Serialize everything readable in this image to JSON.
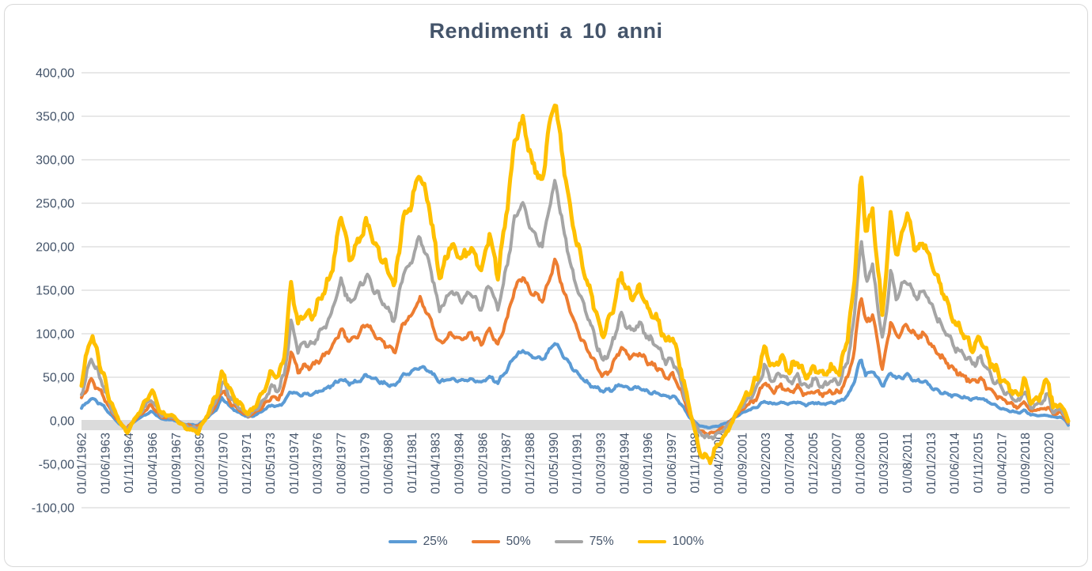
{
  "title": "Rendimenti a 10 anni",
  "chart_data": {
    "type": "line",
    "title": "Rendimenti a 10 anni",
    "grid": true,
    "legend_position": "bottom",
    "y_axis": {
      "min": -100,
      "max": 400,
      "step": 50,
      "tick_labels": [
        "400,00",
        "350,00",
        "300,00",
        "250,00",
        "200,00",
        "150,00",
        "100,00",
        "50,00",
        "0,00",
        "-50,00",
        "-100,00"
      ]
    },
    "x_axis": {
      "start_year": 1962.0,
      "end_year": 2021.25,
      "tick_interval_months": 17,
      "tick_labels": [
        "01/01/1962",
        "01/06/1963",
        "01/11/1964",
        "01/04/1966",
        "01/09/1967",
        "01/02/1969",
        "01/07/1970",
        "01/12/1971",
        "01/05/1973",
        "01/10/1974",
        "01/03/1976",
        "01/08/1977",
        "01/01/1979",
        "01/06/1980",
        "01/11/1981",
        "01/04/1983",
        "01/09/1984",
        "01/02/1986",
        "01/07/1987",
        "01/12/1988",
        "01/05/1990",
        "01/10/1991",
        "01/03/1993",
        "01/08/1994",
        "01/01/1996",
        "01/06/1997",
        "01/11/1998",
        "01/04/2000",
        "01/09/2001",
        "01/02/2003",
        "01/07/2004",
        "01/12/2005",
        "01/05/2007",
        "01/10/2008",
        "01/03/2010",
        "01/08/2011",
        "01/01/2013",
        "01/06/2014",
        "01/11/2015",
        "01/04/2017",
        "01/09/2018",
        "01/02/2020"
      ]
    },
    "keypoint_years": [
      1962.0,
      1962.6,
      1963.3,
      1963.7,
      1964.2,
      1964.7,
      1965.3,
      1966.2,
      1966.8,
      1967.5,
      1968.2,
      1969.0,
      1969.6,
      1970.1,
      1970.45,
      1970.9,
      1971.4,
      1972.0,
      1972.5,
      1973.0,
      1973.4,
      1973.8,
      1974.2,
      1974.6,
      1975.0,
      1975.4,
      1975.8,
      1976.2,
      1976.6,
      1977.0,
      1977.6,
      1978.1,
      1978.6,
      1979.1,
      1979.6,
      1980.1,
      1980.8,
      1981.3,
      1981.8,
      1982.3,
      1982.9,
      1983.5,
      1984.2,
      1984.8,
      1985.4,
      1986.0,
      1986.5,
      1987.0,
      1987.6,
      1988.0,
      1988.5,
      1989.0,
      1989.7,
      1990.0,
      1990.45,
      1990.9,
      1991.5,
      1992.0,
      1992.6,
      1993.3,
      1993.8,
      1994.4,
      1995.0,
      1995.5,
      1996.0,
      1996.6,
      1997.1,
      1997.5,
      1998.0,
      1998.5,
      1999.1,
      1999.7,
      2000.2,
      2000.7,
      2001.1,
      2001.6,
      2002.0,
      2002.5,
      2003.0,
      2003.5,
      2004.0,
      2004.5,
      2005.0,
      2005.5,
      2006.0,
      2006.5,
      2007.0,
      2007.5,
      2008.0,
      2008.4,
      2008.8,
      2009.1,
      2009.5,
      2010.1,
      2010.6,
      2010.95,
      2011.3,
      2011.6,
      2012.1,
      2012.6,
      2013.1,
      2013.7,
      2014.3,
      2014.9,
      2015.5,
      2016.0,
      2016.5,
      2017.0,
      2017.4,
      2017.8,
      2018.3,
      2018.6,
      2019.0,
      2019.5,
      2020.05,
      2020.35,
      2020.8,
      2021.1,
      2021.3
    ],
    "series": [
      {
        "name": "25%",
        "color": "#5B9BD5",
        "stroke_width": 4,
        "noise_amp": 2.2,
        "values": [
          15,
          26,
          17,
          8,
          -2,
          -10,
          1,
          11,
          2,
          1,
          -4,
          -5,
          4,
          13,
          27,
          16,
          10,
          4,
          7,
          13,
          18,
          16,
          22,
          35,
          29,
          31,
          30,
          33,
          36,
          40,
          48,
          43,
          45,
          52,
          48,
          43,
          40,
          52,
          56,
          62,
          57,
          45,
          48,
          46,
          48,
          44,
          50,
          44,
          60,
          74,
          80,
          74,
          70,
          78,
          90,
          76,
          60,
          50,
          40,
          34,
          36,
          41,
          37,
          38,
          33,
          31,
          28,
          28,
          20,
          4,
          -6,
          -8,
          -6,
          -3,
          2,
          8,
          12,
          15,
          22,
          19,
          21,
          19,
          22,
          18,
          21,
          19,
          21,
          22,
          28,
          45,
          72,
          52,
          58,
          40,
          56,
          48,
          50,
          52,
          45,
          46,
          37,
          33,
          29,
          27,
          25,
          26,
          21,
          16,
          13,
          11,
          9,
          12,
          7,
          6,
          6,
          4,
          4,
          0,
          -6
        ]
      },
      {
        "name": "50%",
        "color": "#ED7D31",
        "stroke_width": 4,
        "noise_amp": 3.4,
        "values": [
          26,
          47,
          29,
          13,
          0,
          -9,
          3,
          18,
          4,
          3,
          -5,
          -7,
          5,
          18,
          37,
          21,
          13,
          5,
          10,
          19,
          28,
          25,
          40,
          80,
          57,
          64,
          61,
          69,
          75,
          84,
          105,
          90,
          98,
          112,
          100,
          90,
          78,
          112,
          120,
          140,
          120,
          88,
          100,
          94,
          100,
          88,
          106,
          86,
          120,
          152,
          165,
          148,
          138,
          158,
          185,
          152,
          118,
          95,
          74,
          50,
          60,
          85,
          72,
          78,
          67,
          61,
          50,
          52,
          34,
          7,
          -12,
          -15,
          -11,
          -6,
          2,
          12,
          18,
          25,
          45,
          34,
          40,
          32,
          38,
          29,
          35,
          30,
          34,
          32,
          50,
          80,
          145,
          112,
          122,
          58,
          115,
          94,
          106,
          110,
          96,
          100,
          85,
          72,
          60,
          52,
          45,
          48,
          36,
          28,
          24,
          19,
          15,
          22,
          11,
          13,
          15,
          7,
          10,
          2,
          -5
        ]
      },
      {
        "name": "75%",
        "color": "#A5A5A5",
        "stroke_width": 4,
        "noise_amp": 4.6,
        "values": [
          33,
          72,
          40,
          18,
          1,
          -11,
          4,
          25,
          6,
          4,
          -6,
          -9,
          6,
          23,
          45,
          27,
          17,
          6,
          13,
          26,
          40,
          35,
          55,
          115,
          80,
          90,
          86,
          98,
          108,
          122,
          162,
          135,
          148,
          168,
          150,
          136,
          115,
          168,
          182,
          212,
          180,
          128,
          150,
          137,
          148,
          128,
          158,
          126,
          182,
          232,
          250,
          220,
          200,
          240,
          275,
          225,
          168,
          140,
          108,
          68,
          85,
          122,
          103,
          112,
          95,
          86,
          68,
          70,
          45,
          10,
          -14,
          -20,
          -15,
          -8,
          2,
          15,
          24,
          34,
          62,
          46,
          54,
          44,
          51,
          39,
          47,
          40,
          46,
          43,
          70,
          118,
          210,
          162,
          178,
          90,
          172,
          138,
          158,
          160,
          142,
          150,
          128,
          108,
          88,
          76,
          66,
          72,
          54,
          42,
          34,
          28,
          22,
          36,
          15,
          20,
          30,
          10,
          14,
          4,
          -4
        ]
      },
      {
        "name": "100%",
        "color": "#FFC000",
        "stroke_width": 5,
        "noise_amp": 6.0,
        "values": [
          45,
          100,
          55,
          25,
          2,
          -14,
          5,
          35,
          8,
          5,
          -8,
          -13,
          8,
          30,
          57,
          35,
          22,
          8,
          18,
          35,
          55,
          48,
          75,
          160,
          110,
          125,
          118,
          135,
          150,
          170,
          238,
          185,
          205,
          228,
          205,
          185,
          155,
          230,
          250,
          288,
          245,
          165,
          205,
          185,
          200,
          172,
          215,
          168,
          250,
          320,
          345,
          300,
          273,
          330,
          370,
          300,
          225,
          185,
          145,
          97,
          120,
          168,
          140,
          152,
          128,
          115,
          90,
          95,
          60,
          15,
          -35,
          -45,
          -30,
          -15,
          0,
          20,
          32,
          45,
          85,
          62,
          72,
          58,
          68,
          50,
          62,
          52,
          60,
          55,
          95,
          160,
          283,
          220,
          240,
          120,
          240,
          185,
          220,
          238,
          195,
          205,
          178,
          150,
          118,
          100,
          85,
          95,
          70,
          55,
          45,
          36,
          28,
          52,
          20,
          28,
          49,
          14,
          20,
          8,
          -3
        ]
      }
    ],
    "colors": {
      "grid": "#D9D9D9",
      "zero_band": "#DBDBDB",
      "axis_text": "#44546A",
      "title_text": "#44546A"
    }
  }
}
